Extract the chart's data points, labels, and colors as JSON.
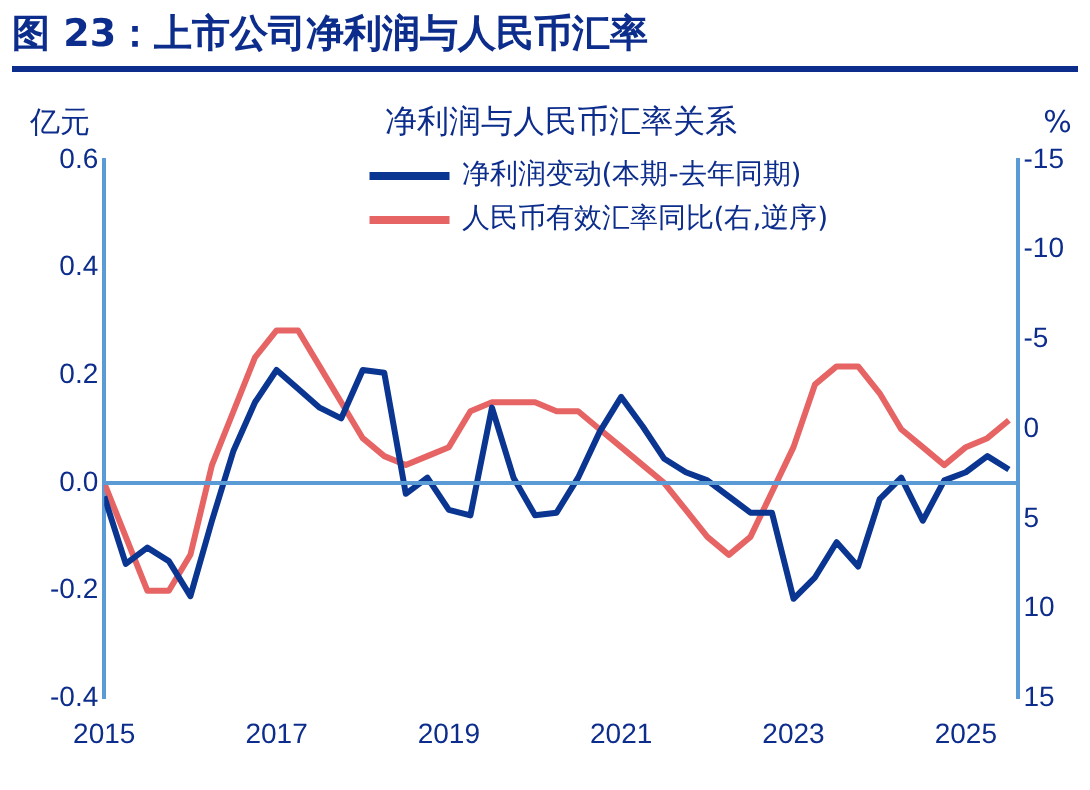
{
  "chart_data": {
    "type": "line",
    "title": "图 23：上市公司净利润与人民币汇率",
    "subtitle": "净利润与人民币汇率关系",
    "ylabel": "亿元",
    "y2label": "%",
    "x": [
      2015,
      2015.25,
      2015.5,
      2015.75,
      2016,
      2016.25,
      2016.5,
      2016.75,
      2017,
      2017.25,
      2017.5,
      2017.75,
      2018,
      2018.25,
      2018.5,
      2018.75,
      2019,
      2019.25,
      2019.5,
      2019.75,
      2020,
      2020.25,
      2020.5,
      2020.75,
      2021,
      2021.25,
      2021.5,
      2021.75,
      2022,
      2022.25,
      2022.5,
      2022.75,
      2023,
      2023.25,
      2023.5,
      2023.75,
      2024,
      2024.25,
      2024.5,
      2024.75,
      2025,
      2025.25,
      2025.5
    ],
    "series": [
      {
        "name": "净利润变动(本期-去年同期)",
        "color": "#0a3591",
        "values": [
          -0.025,
          -0.15,
          -0.12,
          -0.145,
          -0.21,
          -0.07,
          0.06,
          0.15,
          0.21,
          0.175,
          0.14,
          0.12,
          0.21,
          0.205,
          -0.02,
          0.01,
          -0.05,
          -0.06,
          0.14,
          0.01,
          -0.06,
          -0.055,
          0.01,
          0.095,
          0.16,
          0.105,
          0.045,
          0.02,
          0.005,
          -0.025,
          -0.055,
          -0.055,
          -0.215,
          -0.175,
          -0.11,
          -0.155,
          -0.03,
          0.01,
          -0.07,
          0.005,
          0.02,
          0.05,
          0.025
        ]
      },
      {
        "name": "人民币有效汇率同比(右,逆序)",
        "color": "#e66464",
        "axis": "y2",
        "values": [
          3,
          6,
          9,
          9,
          7,
          2,
          -1,
          -4,
          -5.5,
          -5.5,
          -3.5,
          -1.5,
          0.5,
          1.5,
          2,
          1.5,
          1,
          -1,
          -1.5,
          -1.5,
          -1.5,
          -1,
          -1,
          0,
          1,
          2,
          3,
          4.5,
          6,
          7,
          6,
          3.5,
          1,
          -2.5,
          -3.5,
          -3.5,
          -2,
          0,
          1,
          2,
          1,
          0.5,
          -0.5
        ]
      }
    ],
    "xlim": [
      2015,
      2025.6
    ],
    "xticks": [
      2015,
      2017,
      2019,
      2021,
      2023,
      2025
    ],
    "ylim": [
      -0.4,
      0.6
    ],
    "yticks": [
      {
        "value": -0.4,
        "label": "-0.4"
      },
      {
        "value": -0.2,
        "label": "-0.2"
      },
      {
        "value": 0,
        "label": "0.0"
      },
      {
        "value": 0.2,
        "label": "0.2"
      },
      {
        "value": 0.4,
        "label": "0.4"
      },
      {
        "value": 0.6,
        "label": "0.6"
      }
    ],
    "y2lim": [
      15,
      -15
    ],
    "y2ticks": [
      15,
      10,
      5,
      0,
      -5,
      -10,
      -15
    ],
    "ref_lines": [
      {
        "axis": "y",
        "value": 0,
        "label": null,
        "color": "#5b9bd5"
      }
    ],
    "grid": false,
    "legend": "top",
    "marker": "none",
    "line_style": "solid"
  }
}
